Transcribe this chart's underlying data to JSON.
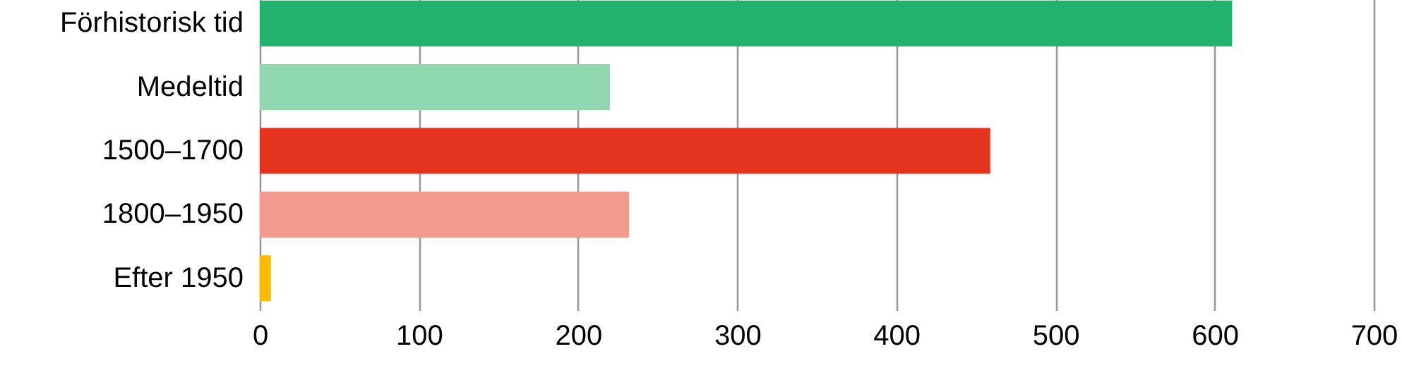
{
  "chart_data": {
    "type": "bar",
    "orientation": "horizontal",
    "categories": [
      "Förhistorisk tid",
      "Medeltid",
      "1500–1700",
      "1800–1950",
      "Efter 1950"
    ],
    "values": [
      611,
      220,
      459,
      232,
      7
    ],
    "colors": [
      "#23b26d",
      "#90d9b0",
      "#e5341e",
      "#f29b8e",
      "#fbb900"
    ],
    "xlim": [
      0,
      700
    ],
    "xticks": [
      0,
      100,
      200,
      300,
      400,
      500,
      600,
      700
    ],
    "grid": "x"
  }
}
